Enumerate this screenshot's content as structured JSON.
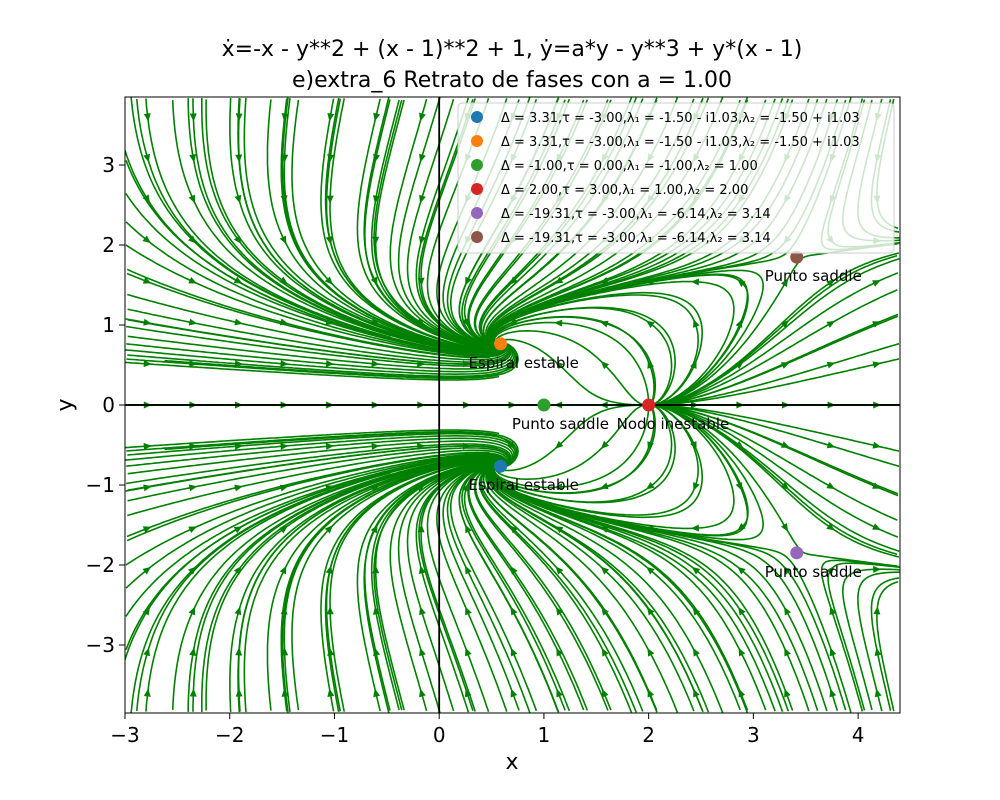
{
  "chart_data": {
    "type": "streamplot",
    "title_line1": "ẋ=-x - y**2 + (x - 1)**2 + 1, ẏ=a*y - y**3 + y*(x - 1)",
    "title_line2": "e)extra_6 Retrato de fases con a = 1.00",
    "xlabel": "x",
    "ylabel": "y",
    "xlim": [
      -3,
      4.4
    ],
    "ylim": [
      -3.85,
      3.85
    ],
    "xticks": [
      -3,
      -2,
      -1,
      0,
      1,
      2,
      3,
      4
    ],
    "yticks": [
      -3,
      -2,
      -1,
      0,
      1,
      2,
      3
    ],
    "xtick_labels": [
      "−3",
      "−2",
      "−1",
      "0",
      "1",
      "2",
      "3",
      "4"
    ],
    "ytick_labels": [
      "−3",
      "−2",
      "−1",
      "0",
      "1",
      "2",
      "3"
    ],
    "stream_color": "#008000",
    "grid": false,
    "legend_position": "top-right",
    "parameter_a": 1.0,
    "equilibria": [
      {
        "x": 0.586,
        "y": -0.765,
        "color": "#1f77b4",
        "legend": "Δ = 3.31,τ = -3.00,λ₁ = -1.50 - i1.03,λ₂ = -1.50 + i1.03",
        "label": "Espiral estable"
      },
      {
        "x": 0.586,
        "y": 0.765,
        "color": "#ff7f0e",
        "legend": "Δ = 3.31,τ = -3.00,λ₁ = -1.50 - i1.03,λ₂ = -1.50 + i1.03",
        "label": "Espiral estable"
      },
      {
        "x": 1.0,
        "y": 0.0,
        "color": "#2ca02c",
        "legend": "Δ = -1.00,τ = 0.00,λ₁ = -1.00,λ₂ = 1.00",
        "label": "Punto saddle"
      },
      {
        "x": 2.0,
        "y": 0.0,
        "color": "#d62728",
        "legend": "Δ = 2.00,τ = 3.00,λ₁ = 1.00,λ₂ = 2.00",
        "label": "Nodo inestable"
      },
      {
        "x": 3.414,
        "y": -1.848,
        "color": "#9467bd",
        "legend": "Δ = -19.31,τ = -3.00,λ₁ = -6.14,λ₂ = 3.14",
        "label": "Punto saddle"
      },
      {
        "x": 3.414,
        "y": 1.848,
        "color": "#8c564b",
        "legend": "Δ = -19.31,τ = -3.00,λ₁ = -6.14,λ₂ = 3.14",
        "label": "Punto saddle"
      }
    ]
  }
}
